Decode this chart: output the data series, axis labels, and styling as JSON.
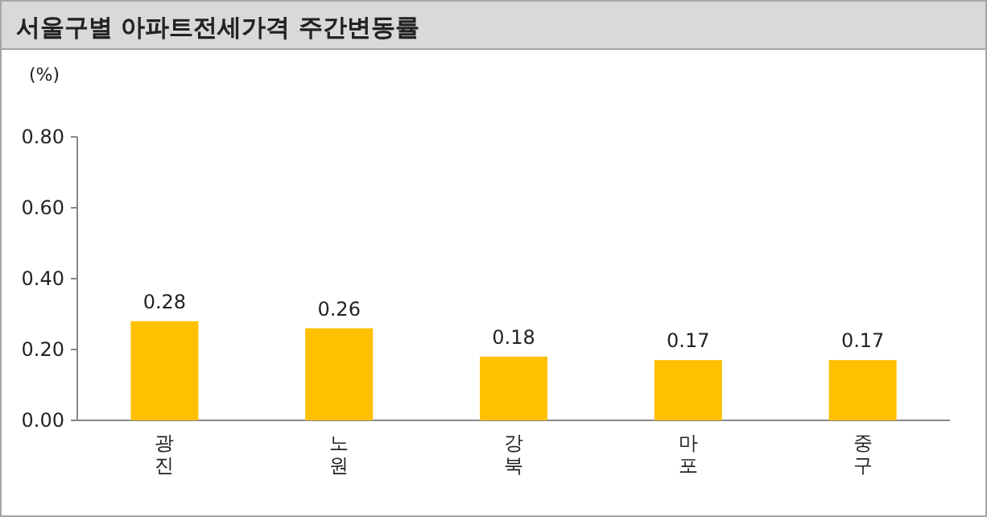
{
  "chart_data": {
    "type": "bar",
    "title": "서울구별 아파트전세가격 주간변동률",
    "ylabel": "(%)",
    "categories": [
      "광진",
      "노원",
      "강북",
      "마포",
      "중구"
    ],
    "values": [
      0.28,
      0.26,
      0.18,
      0.17,
      0.17
    ],
    "color": "#ffc000",
    "ylim": [
      0,
      0.8
    ],
    "yticks": [
      {
        "value": 0,
        "label": "0.00"
      },
      {
        "value": 0.2,
        "label": "0.20"
      },
      {
        "value": 0.4,
        "label": "0.40"
      },
      {
        "value": 0.6,
        "label": "0.60"
      },
      {
        "value": 0.8,
        "label": "0.80"
      }
    ],
    "data_labels": true,
    "grid": false
  }
}
